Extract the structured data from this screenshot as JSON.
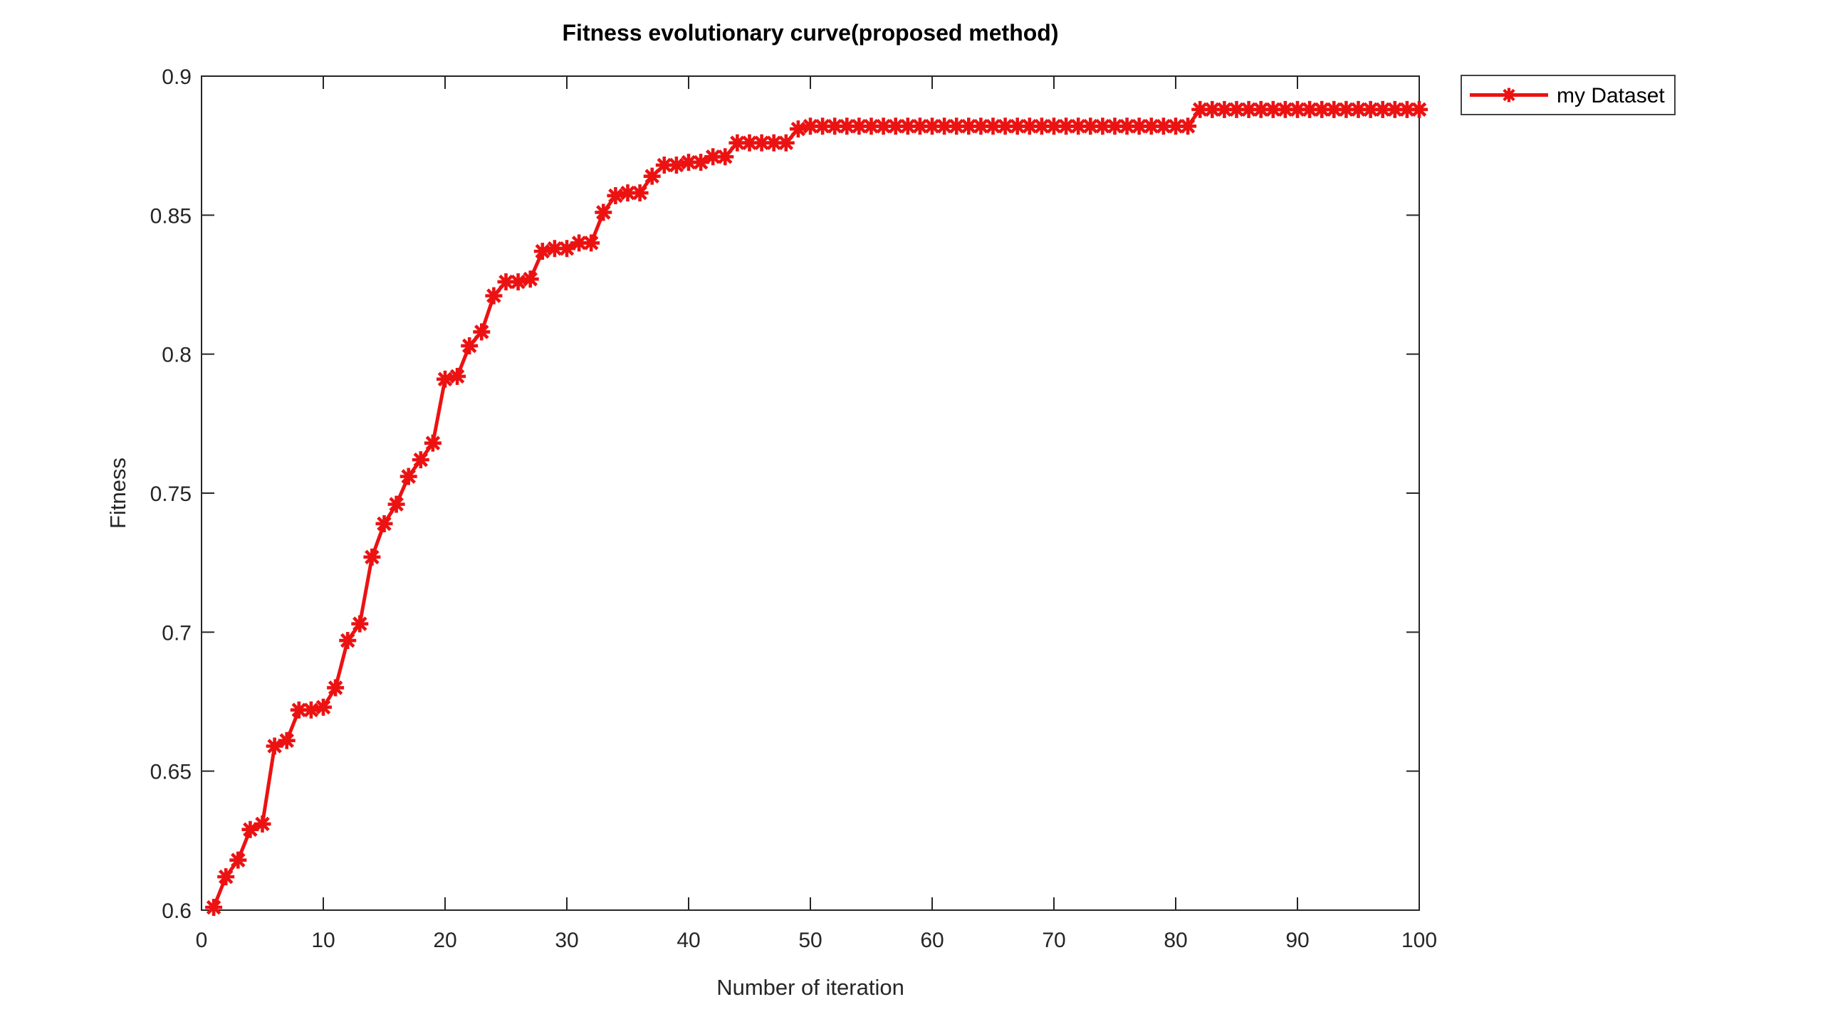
{
  "figure": {
    "background": "#ffffff",
    "axis_color": "#262626",
    "title_color": "#000000"
  },
  "chart_data": {
    "type": "line",
    "title": "Fitness evolutionary curve(proposed method)",
    "xlabel": "Number of iteration",
    "ylabel": "Fitness",
    "xlim": [
      0,
      100
    ],
    "ylim": [
      0.6,
      0.9
    ],
    "grid": false,
    "x_ticks": [
      0,
      10,
      20,
      30,
      40,
      50,
      60,
      70,
      80,
      90,
      100
    ],
    "x_tick_labels": [
      "0",
      "10",
      "20",
      "30",
      "40",
      "50",
      "60",
      "70",
      "80",
      "90",
      "100"
    ],
    "y_ticks": [
      0.6,
      0.65,
      0.7,
      0.75,
      0.8,
      0.85,
      0.9
    ],
    "y_tick_labels": [
      "0.6",
      "0.65",
      "0.7",
      "0.75",
      "0.8",
      "0.85",
      "0.9"
    ],
    "legend": {
      "position": "outside-top-right",
      "border_color": "#424242",
      "entries": [
        {
          "label": "my Dataset",
          "color": "#ec1212",
          "marker": "asterisk",
          "line_style": "solid"
        }
      ]
    },
    "series": [
      {
        "name": "my Dataset",
        "color": "#ec1212",
        "marker": "asterisk",
        "line_width": 5,
        "x": [
          1,
          2,
          3,
          4,
          5,
          6,
          7,
          8,
          9,
          10,
          11,
          12,
          13,
          14,
          15,
          16,
          17,
          18,
          19,
          20,
          21,
          22,
          23,
          24,
          25,
          26,
          27,
          28,
          29,
          30,
          31,
          32,
          33,
          34,
          35,
          36,
          37,
          38,
          39,
          40,
          41,
          42,
          43,
          44,
          45,
          46,
          47,
          48,
          49,
          50,
          51,
          52,
          53,
          54,
          55,
          56,
          57,
          58,
          59,
          60,
          61,
          62,
          63,
          64,
          65,
          66,
          67,
          68,
          69,
          70,
          71,
          72,
          73,
          74,
          75,
          76,
          77,
          78,
          79,
          80,
          81,
          82,
          83,
          84,
          85,
          86,
          87,
          88,
          89,
          90,
          91,
          92,
          93,
          94,
          95,
          96,
          97,
          98,
          99,
          100
        ],
        "values": [
          0.601,
          0.612,
          0.618,
          0.629,
          0.631,
          0.659,
          0.661,
          0.672,
          0.672,
          0.673,
          0.68,
          0.697,
          0.703,
          0.727,
          0.739,
          0.746,
          0.756,
          0.762,
          0.768,
          0.791,
          0.792,
          0.803,
          0.808,
          0.821,
          0.826,
          0.826,
          0.827,
          0.837,
          0.838,
          0.838,
          0.84,
          0.84,
          0.851,
          0.857,
          0.858,
          0.858,
          0.864,
          0.868,
          0.868,
          0.869,
          0.869,
          0.871,
          0.871,
          0.876,
          0.876,
          0.876,
          0.876,
          0.876,
          0.881,
          0.882,
          0.882,
          0.882,
          0.882,
          0.882,
          0.882,
          0.882,
          0.882,
          0.882,
          0.882,
          0.882,
          0.882,
          0.882,
          0.882,
          0.882,
          0.882,
          0.882,
          0.882,
          0.882,
          0.882,
          0.882,
          0.882,
          0.882,
          0.882,
          0.882,
          0.882,
          0.882,
          0.882,
          0.882,
          0.882,
          0.882,
          0.882,
          0.888,
          0.888,
          0.888,
          0.888,
          0.888,
          0.888,
          0.888,
          0.888,
          0.888,
          0.888,
          0.888,
          0.888,
          0.888,
          0.888,
          0.888,
          0.888,
          0.888,
          0.888,
          0.888
        ]
      }
    ]
  }
}
